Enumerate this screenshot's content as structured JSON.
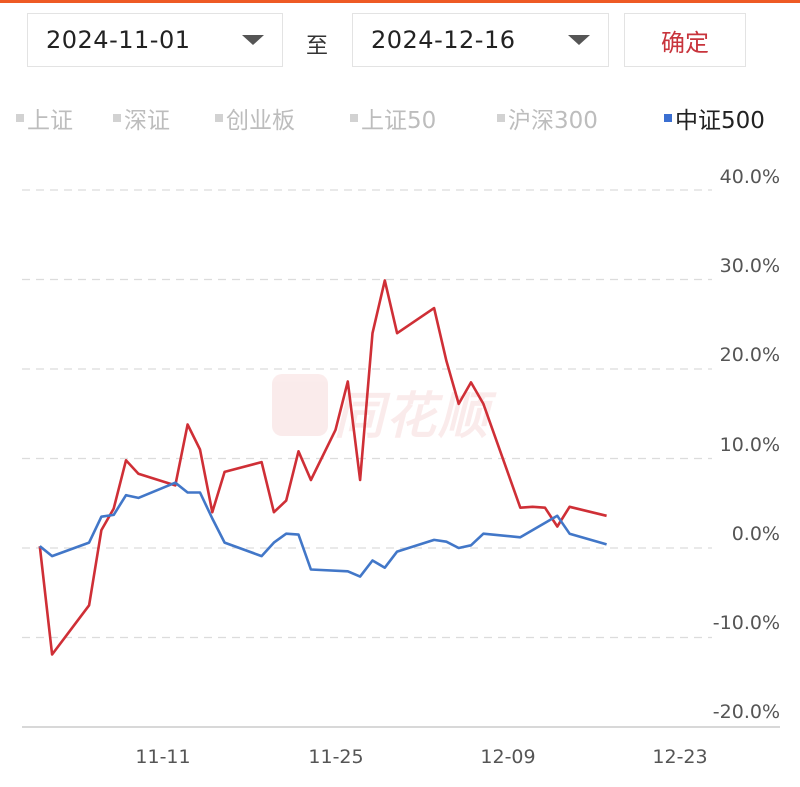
{
  "date_range": {
    "start": "2024-11-01",
    "separator": "至",
    "end": "2024-12-16",
    "confirm_label": "确定"
  },
  "legend": [
    {
      "label": "上证",
      "active": false
    },
    {
      "label": "深证",
      "active": false
    },
    {
      "label": "创业板",
      "active": false
    },
    {
      "label": "上证50",
      "active": false
    },
    {
      "label": "沪深300",
      "active": false
    },
    {
      "label": "中证500",
      "active": true
    }
  ],
  "watermark_text": "同花顺",
  "colors": {
    "series_a": "#cf2f36",
    "series_b": "#4277c8",
    "grid": "#dcdcdc",
    "axis": "#cccccc"
  },
  "chart_data": {
    "type": "line",
    "y_ticks": [
      "40.0%",
      "30.0%",
      "20.0%",
      "10.0%",
      "0.0%",
      "-10.0%",
      "-20.0%"
    ],
    "ylim": [
      -20,
      40
    ],
    "x_ticks": [
      {
        "label": "11-11",
        "date": "2024-11-11"
      },
      {
        "label": "11-25",
        "date": "2024-11-25"
      },
      {
        "label": "12-09",
        "date": "2024-12-09"
      },
      {
        "label": "12-23",
        "date": "2024-12-23"
      }
    ],
    "x_range": [
      "2024-11-01",
      "2024-12-27"
    ],
    "grid": true,
    "series": [
      {
        "color": "#cf2f36",
        "points": [
          [
            "2024-11-01",
            0.2
          ],
          [
            "2024-11-02",
            -11.9
          ],
          [
            "2024-11-05",
            -6.4
          ],
          [
            "2024-11-06",
            2.0
          ],
          [
            "2024-11-07",
            4.4
          ],
          [
            "2024-11-08",
            9.8
          ],
          [
            "2024-11-09",
            8.3
          ],
          [
            "2024-11-12",
            7.0
          ],
          [
            "2024-11-13",
            13.8
          ],
          [
            "2024-11-14",
            11.0
          ],
          [
            "2024-11-15",
            4.0
          ],
          [
            "2024-11-16",
            8.5
          ],
          [
            "2024-11-19",
            9.6
          ],
          [
            "2024-11-20",
            4.0
          ],
          [
            "2024-11-21",
            5.3
          ],
          [
            "2024-11-22",
            10.8
          ],
          [
            "2024-11-23",
            7.6
          ],
          [
            "2024-11-25",
            13.2
          ],
          [
            "2024-11-26",
            18.6
          ],
          [
            "2024-11-27",
            7.6
          ],
          [
            "2024-11-28",
            24.0
          ],
          [
            "2024-11-29",
            29.9
          ],
          [
            "2024-11-30",
            24.0
          ],
          [
            "2024-12-03",
            26.8
          ],
          [
            "2024-12-04",
            20.9
          ],
          [
            "2024-12-05",
            16.1
          ],
          [
            "2024-12-06",
            18.5
          ],
          [
            "2024-12-07",
            16.1
          ],
          [
            "2024-12-10",
            4.5
          ],
          [
            "2024-12-11",
            4.6
          ],
          [
            "2024-12-12",
            4.5
          ],
          [
            "2024-12-13",
            2.4
          ],
          [
            "2024-12-14",
            4.6
          ],
          [
            "2024-12-17",
            3.6
          ]
        ]
      },
      {
        "color": "#4277c8",
        "name": "中证500",
        "points": [
          [
            "2024-11-01",
            0.2
          ],
          [
            "2024-11-02",
            -0.9
          ],
          [
            "2024-11-05",
            0.6
          ],
          [
            "2024-11-06",
            3.5
          ],
          [
            "2024-11-07",
            3.7
          ],
          [
            "2024-11-08",
            5.9
          ],
          [
            "2024-11-09",
            5.6
          ],
          [
            "2024-11-12",
            7.3
          ],
          [
            "2024-11-13",
            6.2
          ],
          [
            "2024-11-14",
            6.2
          ],
          [
            "2024-11-15",
            3.3
          ],
          [
            "2024-11-16",
            0.6
          ],
          [
            "2024-11-19",
            -0.9
          ],
          [
            "2024-11-20",
            0.6
          ],
          [
            "2024-11-21",
            1.6
          ],
          [
            "2024-11-22",
            1.5
          ],
          [
            "2024-11-23",
            -2.4
          ],
          [
            "2024-11-26",
            -2.6
          ],
          [
            "2024-11-27",
            -3.2
          ],
          [
            "2024-11-28",
            -1.4
          ],
          [
            "2024-11-29",
            -2.2
          ],
          [
            "2024-11-30",
            -0.4
          ],
          [
            "2024-12-03",
            0.9
          ],
          [
            "2024-12-04",
            0.7
          ],
          [
            "2024-12-05",
            0.0
          ],
          [
            "2024-12-06",
            0.3
          ],
          [
            "2024-12-07",
            1.6
          ],
          [
            "2024-12-10",
            1.2
          ],
          [
            "2024-12-13",
            3.6
          ],
          [
            "2024-12-14",
            1.6
          ],
          [
            "2024-12-17",
            0.4
          ]
        ]
      }
    ]
  }
}
